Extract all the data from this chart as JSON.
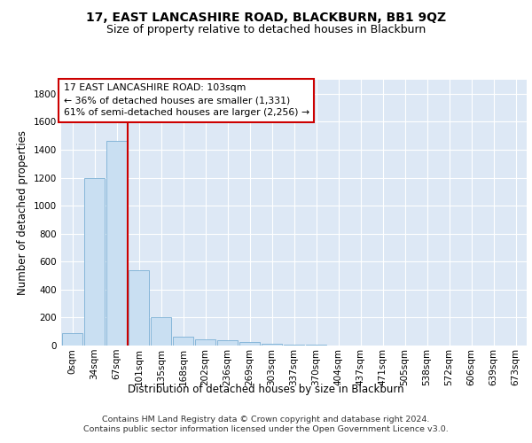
{
  "title1": "17, EAST LANCASHIRE ROAD, BLACKBURN, BB1 9QZ",
  "title2": "Size of property relative to detached houses in Blackburn",
  "xlabel": "Distribution of detached houses by size in Blackburn",
  "ylabel": "Number of detached properties",
  "bar_color": "#c9dff2",
  "bar_edge_color": "#7aafd4",
  "categories": [
    "0sqm",
    "34sqm",
    "67sqm",
    "101sqm",
    "135sqm",
    "168sqm",
    "202sqm",
    "236sqm",
    "269sqm",
    "303sqm",
    "337sqm",
    "370sqm",
    "404sqm",
    "437sqm",
    "471sqm",
    "505sqm",
    "538sqm",
    "572sqm",
    "606sqm",
    "639sqm",
    "673sqm"
  ],
  "values": [
    90,
    1200,
    1460,
    540,
    205,
    65,
    47,
    35,
    28,
    10,
    7,
    4,
    0,
    0,
    0,
    0,
    0,
    0,
    0,
    0,
    0
  ],
  "vline_index": 3,
  "annotation_line1": "17 EAST LANCASHIRE ROAD: 103sqm",
  "annotation_line2": "← 36% of detached houses are smaller (1,331)",
  "annotation_line3": "61% of semi-detached houses are larger (2,256) →",
  "annotation_box_color": "#ffffff",
  "annotation_edge_color": "#cc0000",
  "vline_color": "#cc0000",
  "ylim": [
    0,
    1900
  ],
  "yticks": [
    0,
    200,
    400,
    600,
    800,
    1000,
    1200,
    1400,
    1600,
    1800
  ],
  "footer1": "Contains HM Land Registry data © Crown copyright and database right 2024.",
  "footer2": "Contains public sector information licensed under the Open Government Licence v3.0.",
  "plot_background": "#dde8f5",
  "grid_color": "#ffffff",
  "title1_fontsize": 10,
  "title2_fontsize": 9,
  "axis_label_fontsize": 8.5,
  "tick_fontsize": 7.5,
  "annotation_fontsize": 7.8,
  "footer_fontsize": 6.8
}
